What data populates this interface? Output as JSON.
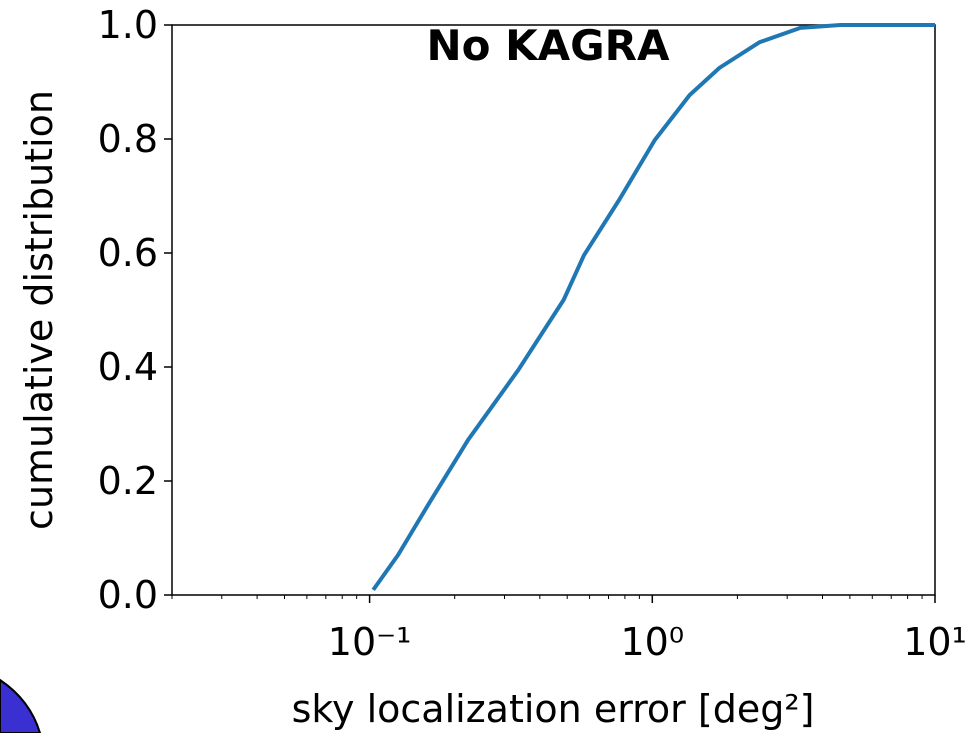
{
  "chart_data": {
    "type": "line",
    "annotation": "No KAGRA",
    "annotation_color": "#1f6fb2",
    "xlabel": "sky localization error [deg²]",
    "ylabel": "cumulative distribution",
    "xscale": "log",
    "xlim": [
      0.02,
      10
    ],
    "xticks": [
      {
        "value": 0.1,
        "label": "10⁻¹"
      },
      {
        "value": 1,
        "label": "10⁰"
      },
      {
        "value": 10,
        "label": "10¹"
      }
    ],
    "ylim": [
      0,
      1
    ],
    "yticks": [
      {
        "value": 0,
        "label": "0.0"
      },
      0.2,
      0.4,
      0.6,
      0.8,
      {
        "value": 1,
        "label": "1.0"
      }
    ],
    "grid": false,
    "series": [
      {
        "color": "#1f77b4",
        "x": [
          0.103,
          0.126,
          0.161,
          0.223,
          0.336,
          0.486,
          0.573,
          0.763,
          1.02,
          1.355,
          1.73,
          2.4,
          3.34,
          4.63,
          10
        ],
        "values": [
          0.009,
          0.07,
          0.158,
          0.272,
          0.395,
          0.518,
          0.596,
          0.693,
          0.798,
          0.877,
          0.925,
          0.97,
          0.995,
          1.0,
          1.0
        ]
      }
    ]
  }
}
